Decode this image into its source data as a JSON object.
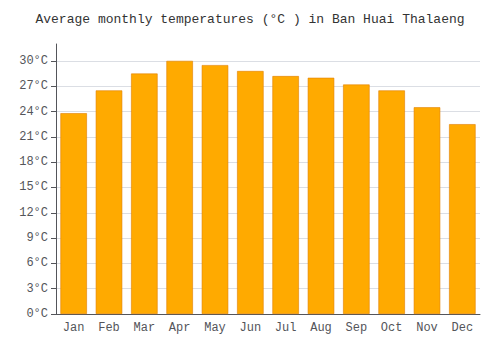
{
  "chart_data": {
    "type": "bar",
    "title": "Average monthly temperatures (°C ) in Ban Huai Thalaeng",
    "categories": [
      "Jan",
      "Feb",
      "Mar",
      "Apr",
      "May",
      "Jun",
      "Jul",
      "Aug",
      "Sep",
      "Oct",
      "Nov",
      "Dec"
    ],
    "values": [
      23.8,
      26.5,
      28.5,
      30.0,
      29.5,
      28.8,
      28.2,
      28.0,
      27.2,
      26.5,
      24.5,
      22.5
    ],
    "color": "#FFAA00",
    "ylim": [
      0,
      32
    ],
    "yticks": [
      {
        "value": 0,
        "label": "0°C"
      },
      {
        "value": 3,
        "label": "3°C"
      },
      {
        "value": 6,
        "label": "6°C"
      },
      {
        "value": 9,
        "label": "9°C"
      },
      {
        "value": 12,
        "label": "12°C"
      },
      {
        "value": 15,
        "label": "15°C"
      },
      {
        "value": 18,
        "label": "18°C"
      },
      {
        "value": 21,
        "label": "21°C"
      },
      {
        "value": 24,
        "label": "24°C"
      },
      {
        "value": 27,
        "label": "27°C"
      },
      {
        "value": 30,
        "label": "30°C"
      }
    ],
    "grid": true
  }
}
